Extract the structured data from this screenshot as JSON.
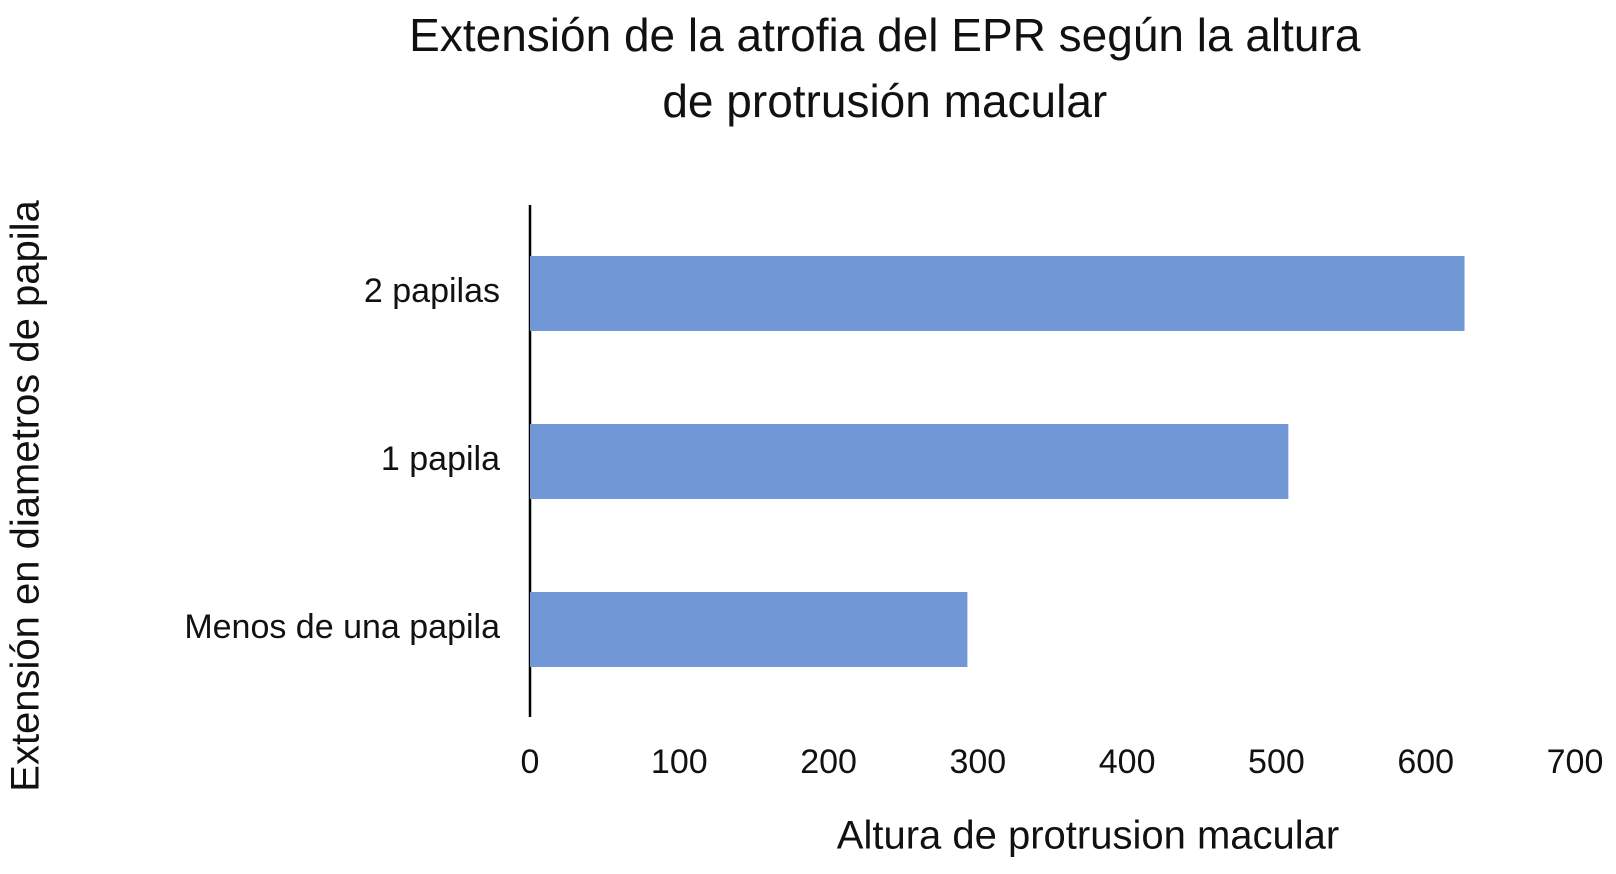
{
  "chart_data": {
    "type": "barh",
    "title": "Extensión de la atrofia del EPR según la altura de protrusión macular",
    "x_label": "Altura de protrusion macular",
    "y_label": "Extensión en diametros de papila",
    "categories": [
      "2 papilas",
      "1 papila",
      "Menos de una papila"
    ],
    "values": [
      626,
      508,
      293
    ],
    "color": "#7297d6",
    "xlim": [
      0,
      700
    ],
    "xticks": [
      0,
      100,
      200,
      300,
      400,
      500,
      600,
      700
    ],
    "grid": false
  }
}
